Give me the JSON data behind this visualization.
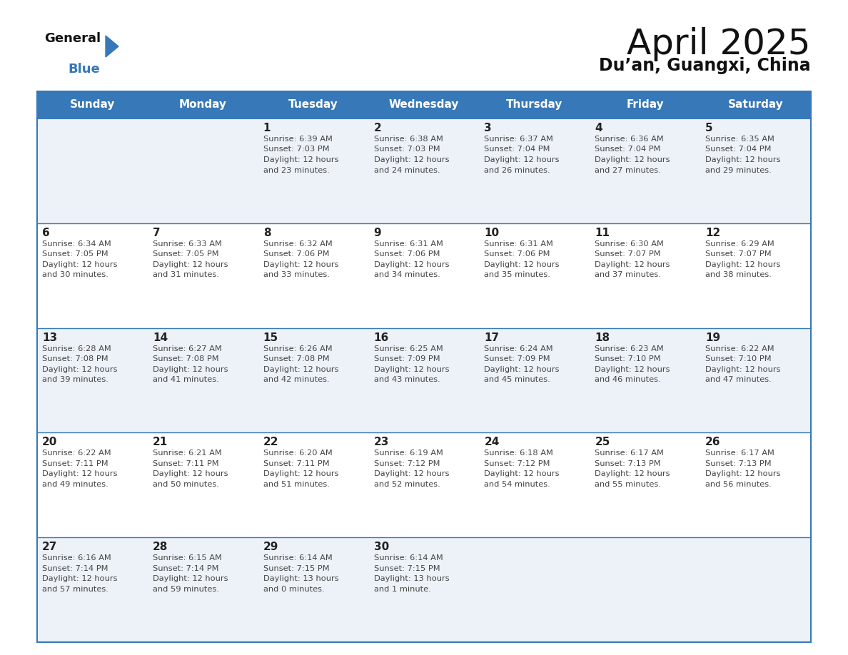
{
  "title": "April 2025",
  "subtitle": "Du’an, Guangxi, China",
  "header_bg": "#3778b8",
  "header_text_color": "#ffffff",
  "weekdays": [
    "Sunday",
    "Monday",
    "Tuesday",
    "Wednesday",
    "Thursday",
    "Friday",
    "Saturday"
  ],
  "row_bg_even": "#edf2f8",
  "row_bg_odd": "#ffffff",
  "border_color": "#3778b8",
  "text_color": "#444444",
  "day_number_color": "#222222",
  "logo_general_color": "#111111",
  "logo_blue_color": "#3778b8",
  "logo_triangle_color": "#3778b8",
  "days": [
    {
      "date": 1,
      "col": 2,
      "row": 0,
      "sunrise": "6:39 AM",
      "sunset": "7:03 PM",
      "daylight": "12 hours\nand 23 minutes."
    },
    {
      "date": 2,
      "col": 3,
      "row": 0,
      "sunrise": "6:38 AM",
      "sunset": "7:03 PM",
      "daylight": "12 hours\nand 24 minutes."
    },
    {
      "date": 3,
      "col": 4,
      "row": 0,
      "sunrise": "6:37 AM",
      "sunset": "7:04 PM",
      "daylight": "12 hours\nand 26 minutes."
    },
    {
      "date": 4,
      "col": 5,
      "row": 0,
      "sunrise": "6:36 AM",
      "sunset": "7:04 PM",
      "daylight": "12 hours\nand 27 minutes."
    },
    {
      "date": 5,
      "col": 6,
      "row": 0,
      "sunrise": "6:35 AM",
      "sunset": "7:04 PM",
      "daylight": "12 hours\nand 29 minutes."
    },
    {
      "date": 6,
      "col": 0,
      "row": 1,
      "sunrise": "6:34 AM",
      "sunset": "7:05 PM",
      "daylight": "12 hours\nand 30 minutes."
    },
    {
      "date": 7,
      "col": 1,
      "row": 1,
      "sunrise": "6:33 AM",
      "sunset": "7:05 PM",
      "daylight": "12 hours\nand 31 minutes."
    },
    {
      "date": 8,
      "col": 2,
      "row": 1,
      "sunrise": "6:32 AM",
      "sunset": "7:06 PM",
      "daylight": "12 hours\nand 33 minutes."
    },
    {
      "date": 9,
      "col": 3,
      "row": 1,
      "sunrise": "6:31 AM",
      "sunset": "7:06 PM",
      "daylight": "12 hours\nand 34 minutes."
    },
    {
      "date": 10,
      "col": 4,
      "row": 1,
      "sunrise": "6:31 AM",
      "sunset": "7:06 PM",
      "daylight": "12 hours\nand 35 minutes."
    },
    {
      "date": 11,
      "col": 5,
      "row": 1,
      "sunrise": "6:30 AM",
      "sunset": "7:07 PM",
      "daylight": "12 hours\nand 37 minutes."
    },
    {
      "date": 12,
      "col": 6,
      "row": 1,
      "sunrise": "6:29 AM",
      "sunset": "7:07 PM",
      "daylight": "12 hours\nand 38 minutes."
    },
    {
      "date": 13,
      "col": 0,
      "row": 2,
      "sunrise": "6:28 AM",
      "sunset": "7:08 PM",
      "daylight": "12 hours\nand 39 minutes."
    },
    {
      "date": 14,
      "col": 1,
      "row": 2,
      "sunrise": "6:27 AM",
      "sunset": "7:08 PM",
      "daylight": "12 hours\nand 41 minutes."
    },
    {
      "date": 15,
      "col": 2,
      "row": 2,
      "sunrise": "6:26 AM",
      "sunset": "7:08 PM",
      "daylight": "12 hours\nand 42 minutes."
    },
    {
      "date": 16,
      "col": 3,
      "row": 2,
      "sunrise": "6:25 AM",
      "sunset": "7:09 PM",
      "daylight": "12 hours\nand 43 minutes."
    },
    {
      "date": 17,
      "col": 4,
      "row": 2,
      "sunrise": "6:24 AM",
      "sunset": "7:09 PM",
      "daylight": "12 hours\nand 45 minutes."
    },
    {
      "date": 18,
      "col": 5,
      "row": 2,
      "sunrise": "6:23 AM",
      "sunset": "7:10 PM",
      "daylight": "12 hours\nand 46 minutes."
    },
    {
      "date": 19,
      "col": 6,
      "row": 2,
      "sunrise": "6:22 AM",
      "sunset": "7:10 PM",
      "daylight": "12 hours\nand 47 minutes."
    },
    {
      "date": 20,
      "col": 0,
      "row": 3,
      "sunrise": "6:22 AM",
      "sunset": "7:11 PM",
      "daylight": "12 hours\nand 49 minutes."
    },
    {
      "date": 21,
      "col": 1,
      "row": 3,
      "sunrise": "6:21 AM",
      "sunset": "7:11 PM",
      "daylight": "12 hours\nand 50 minutes."
    },
    {
      "date": 22,
      "col": 2,
      "row": 3,
      "sunrise": "6:20 AM",
      "sunset": "7:11 PM",
      "daylight": "12 hours\nand 51 minutes."
    },
    {
      "date": 23,
      "col": 3,
      "row": 3,
      "sunrise": "6:19 AM",
      "sunset": "7:12 PM",
      "daylight": "12 hours\nand 52 minutes."
    },
    {
      "date": 24,
      "col": 4,
      "row": 3,
      "sunrise": "6:18 AM",
      "sunset": "7:12 PM",
      "daylight": "12 hours\nand 54 minutes."
    },
    {
      "date": 25,
      "col": 5,
      "row": 3,
      "sunrise": "6:17 AM",
      "sunset": "7:13 PM",
      "daylight": "12 hours\nand 55 minutes."
    },
    {
      "date": 26,
      "col": 6,
      "row": 3,
      "sunrise": "6:17 AM",
      "sunset": "7:13 PM",
      "daylight": "12 hours\nand 56 minutes."
    },
    {
      "date": 27,
      "col": 0,
      "row": 4,
      "sunrise": "6:16 AM",
      "sunset": "7:14 PM",
      "daylight": "12 hours\nand 57 minutes."
    },
    {
      "date": 28,
      "col": 1,
      "row": 4,
      "sunrise": "6:15 AM",
      "sunset": "7:14 PM",
      "daylight": "12 hours\nand 59 minutes."
    },
    {
      "date": 29,
      "col": 2,
      "row": 4,
      "sunrise": "6:14 AM",
      "sunset": "7:15 PM",
      "daylight": "13 hours\nand 0 minutes."
    },
    {
      "date": 30,
      "col": 3,
      "row": 4,
      "sunrise": "6:14 AM",
      "sunset": "7:15 PM",
      "daylight": "13 hours\nand 1 minute."
    }
  ]
}
